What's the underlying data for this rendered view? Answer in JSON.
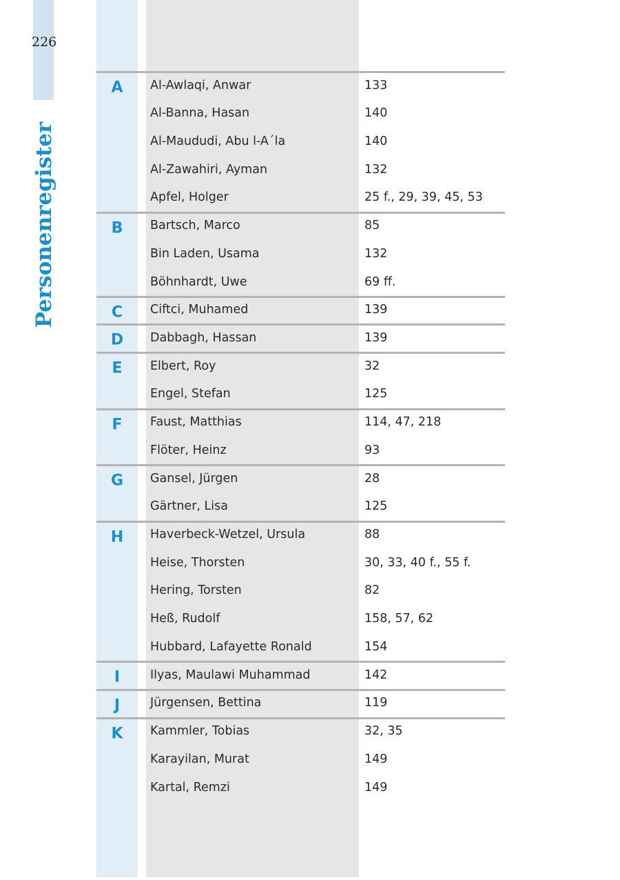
{
  "page_number": "226",
  "section_title": "Personenregister",
  "colors": {
    "accent": "#1a8fd0",
    "letter_column": "#e1eef8",
    "name_column": "#e6e6e6",
    "rule": "#b4b4b4"
  },
  "groups": [
    {
      "letter": "A",
      "entries": [
        {
          "name": "Al-Awlaqi, Anwar",
          "pages": "133"
        },
        {
          "name": "Al-Banna, Hasan",
          "pages": "140"
        },
        {
          "name": "Al-Maududi, Abu l-A´la",
          "pages": "140"
        },
        {
          "name": "Al-Zawahiri, Ayman",
          "pages": "132"
        },
        {
          "name": "Apfel, Holger",
          "pages": "25 f., 29, 39, 45, 53"
        }
      ]
    },
    {
      "letter": "B",
      "entries": [
        {
          "name": "Bartsch, Marco",
          "pages": "85"
        },
        {
          "name": "Bin Laden, Usama",
          "pages": "132"
        },
        {
          "name": "Böhnhardt, Uwe",
          "pages": "69 ff."
        }
      ]
    },
    {
      "letter": "C",
      "entries": [
        {
          "name": "Ciftci, Muhamed",
          "pages": "139"
        }
      ]
    },
    {
      "letter": "D",
      "entries": [
        {
          "name": "Dabbagh, Hassan",
          "pages": "139"
        }
      ]
    },
    {
      "letter": "E",
      "entries": [
        {
          "name": "Elbert, Roy",
          "pages": "32"
        },
        {
          "name": "Engel, Stefan",
          "pages": "125"
        }
      ]
    },
    {
      "letter": "F",
      "entries": [
        {
          "name": "Faust, Matthias",
          "pages": "114, 47, 218"
        },
        {
          "name": "Flöter, Heinz",
          "pages": "93"
        }
      ]
    },
    {
      "letter": "G",
      "entries": [
        {
          "name": "Gansel, Jürgen",
          "pages": "28"
        },
        {
          "name": "Gärtner, Lisa",
          "pages": "125"
        }
      ]
    },
    {
      "letter": "H",
      "entries": [
        {
          "name": "Haverbeck-Wetzel, Ursula",
          "pages": "88"
        },
        {
          "name": "Heise, Thorsten",
          "pages": "30, 33, 40 f., 55 f."
        },
        {
          "name": "Hering, Torsten",
          "pages": "82"
        },
        {
          "name": "Heß, Rudolf",
          "pages": "158, 57, 62"
        },
        {
          "name": "Hubbard, Lafayette Ronald",
          "pages": "154"
        }
      ]
    },
    {
      "letter": "I",
      "entries": [
        {
          "name": "Ilyas, Maulawi Muhammad",
          "pages": "142"
        }
      ]
    },
    {
      "letter": "J",
      "entries": [
        {
          "name": "Jürgensen, Bettina",
          "pages": "119"
        }
      ]
    },
    {
      "letter": "K",
      "entries": [
        {
          "name": "Kammler, Tobias",
          "pages": "32, 35"
        },
        {
          "name": "Karayilan, Murat",
          "pages": "149"
        },
        {
          "name": "Kartal, Remzi",
          "pages": "149"
        }
      ]
    }
  ]
}
